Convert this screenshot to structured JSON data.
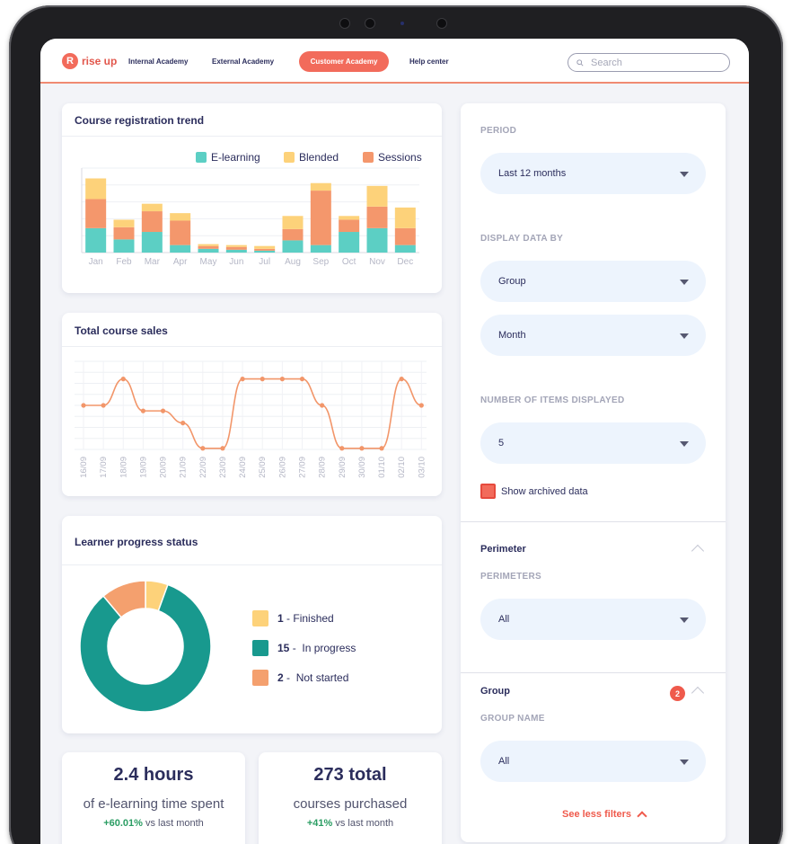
{
  "nav": {
    "logo_letter": "R",
    "logo_text": "rise up",
    "links": [
      "Internal Academy",
      "External Academy",
      "Customer Academy",
      "Help center"
    ],
    "active_link": "Customer Academy",
    "search_placeholder": "Search"
  },
  "registration_card": {
    "title": "Course registration trend",
    "legend": [
      "E-learning",
      "Blended",
      "Sessions"
    ]
  },
  "sales_card": {
    "title": "Total course sales"
  },
  "progress_card": {
    "title": "Learner progress status",
    "items": [
      {
        "count": "1",
        "label": "Finished"
      },
      {
        "count": "15",
        "label": "In progress"
      },
      {
        "count": "2",
        "label": "Not started"
      }
    ]
  },
  "stats": [
    {
      "value": "2.4 hours",
      "label": "of e-learning time spent",
      "delta": "+60.01%",
      "delta_suffix": "vs last month"
    },
    {
      "value": "273 total",
      "label": "courses purchased",
      "delta": "+41%",
      "delta_suffix": "vs last month"
    }
  ],
  "filters": {
    "period_label": "PERIOD",
    "period_value": "Last 12 months",
    "display_label": "DISPLAY DATA BY",
    "display_value_1": "Group",
    "display_value_2": "Month",
    "items_label": "NUMBER OF ITEMS DISPLAYED",
    "items_value": "5",
    "archived_label": "Show archived data",
    "perimeter_title": "Perimeter",
    "perimeters_label": "PERIMETERS",
    "perimeters_value": "All",
    "group_title": "Group",
    "group_badge": "2",
    "group_name_label": "GROUP NAME",
    "group_name_value": "All",
    "see_less": "See less filters"
  },
  "colors": {
    "elearning": "#5ccfc4",
    "blended": "#fdd27a",
    "sessions": "#f4976c",
    "line": "#f2966a",
    "finished": "#fdd27a",
    "in_progress": "#18998e",
    "not_started": "#f4a06e",
    "accent": "#f26b5b"
  },
  "chart_data": [
    {
      "type": "bar",
      "title": "Course registration trend",
      "categories": [
        "Jan",
        "Feb",
        "Mar",
        "Apr",
        "May",
        "Jun",
        "Jul",
        "Aug",
        "Sep",
        "Oct",
        "Nov",
        "Dec"
      ],
      "stacked": true,
      "series": [
        {
          "name": "E-learning",
          "values": [
            26,
            14,
            22,
            8,
            4,
            3,
            2,
            13,
            8,
            22,
            26,
            8
          ]
        },
        {
          "name": "Sessions",
          "values": [
            31,
            13,
            22,
            26,
            3,
            3,
            2,
            12,
            58,
            13,
            23,
            18
          ]
        },
        {
          "name": "Blended",
          "values": [
            22,
            8,
            8,
            8,
            2,
            2,
            3,
            14,
            8,
            4,
            22,
            22
          ]
        }
      ],
      "ylim": [
        0,
        90
      ],
      "legend": "top-right",
      "grid": true
    },
    {
      "type": "line",
      "title": "Total course sales",
      "x": [
        "16/09",
        "17/09",
        "18/09",
        "19/09",
        "20/09",
        "21/09",
        "22/09",
        "23/09",
        "24/09",
        "25/09",
        "26/09",
        "27/09",
        "28/09",
        "29/09",
        "30/09",
        "01/10",
        "02/10",
        "03/10"
      ],
      "values": [
        4.0,
        4.0,
        6.4,
        3.5,
        3.5,
        2.4,
        0.1,
        0.1,
        6.4,
        6.4,
        6.4,
        6.4,
        4.0,
        0.1,
        0.1,
        0.1,
        6.4,
        4.0
      ],
      "ylim": [
        0,
        8
      ],
      "grid": true
    },
    {
      "type": "pie",
      "title": "Learner progress status",
      "categories": [
        "Finished",
        "In progress",
        "Not started"
      ],
      "values": [
        1,
        15,
        2
      ],
      "donut": true
    }
  ]
}
